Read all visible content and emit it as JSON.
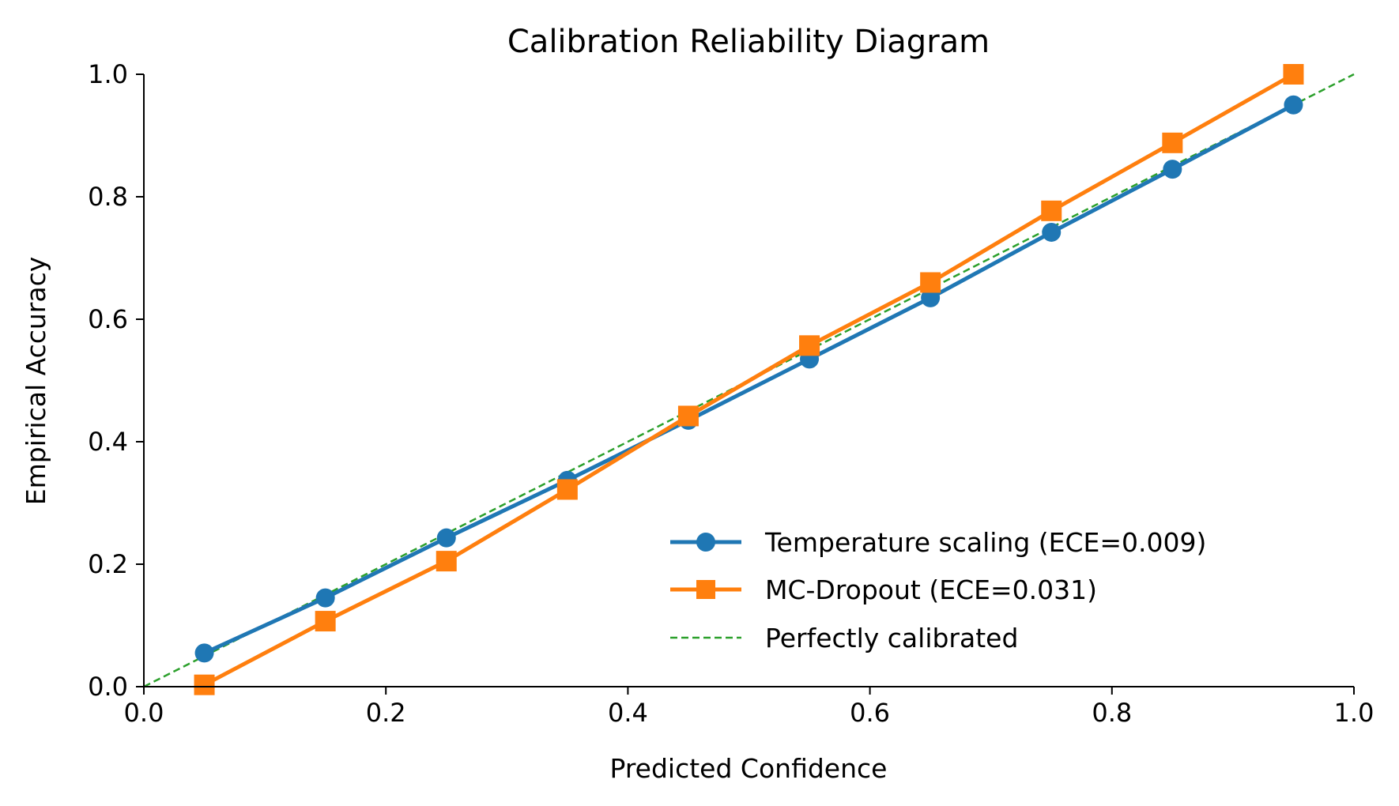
{
  "chart_data": {
    "type": "line",
    "title": "Calibration Reliability Diagram",
    "xlabel": "Predicted Confidence",
    "ylabel": "Empirical Accuracy",
    "xlim": [
      0.0,
      1.0
    ],
    "ylim": [
      0.0,
      1.0
    ],
    "xticks": [
      "0.0",
      "0.2",
      "0.4",
      "0.6",
      "0.8",
      "1.0"
    ],
    "yticks": [
      "0.0",
      "0.2",
      "0.4",
      "0.6",
      "0.8",
      "1.0"
    ],
    "grid": false,
    "legend_position": "lower-right",
    "x": [
      0.05,
      0.15,
      0.25,
      0.35,
      0.45,
      0.55,
      0.65,
      0.75,
      0.85,
      0.95
    ],
    "series": [
      {
        "name": "Temperature scaling (ECE=0.009)",
        "marker": "circle",
        "color": "#1f77b4",
        "values": [
          0.055,
          0.145,
          0.243,
          0.337,
          0.435,
          0.535,
          0.635,
          0.742,
          0.845,
          0.95
        ]
      },
      {
        "name": "MC-Dropout (ECE=0.031)",
        "marker": "square",
        "color": "#ff7f0e",
        "values": [
          0.003,
          0.107,
          0.205,
          0.322,
          0.442,
          0.557,
          0.66,
          0.777,
          0.888,
          1.0
        ]
      },
      {
        "name": "Perfectly calibrated",
        "marker": "none",
        "style": "dashed",
        "color": "#2ca02c",
        "x": [
          0.0,
          1.0
        ],
        "values": [
          0.0,
          1.0
        ]
      }
    ]
  }
}
